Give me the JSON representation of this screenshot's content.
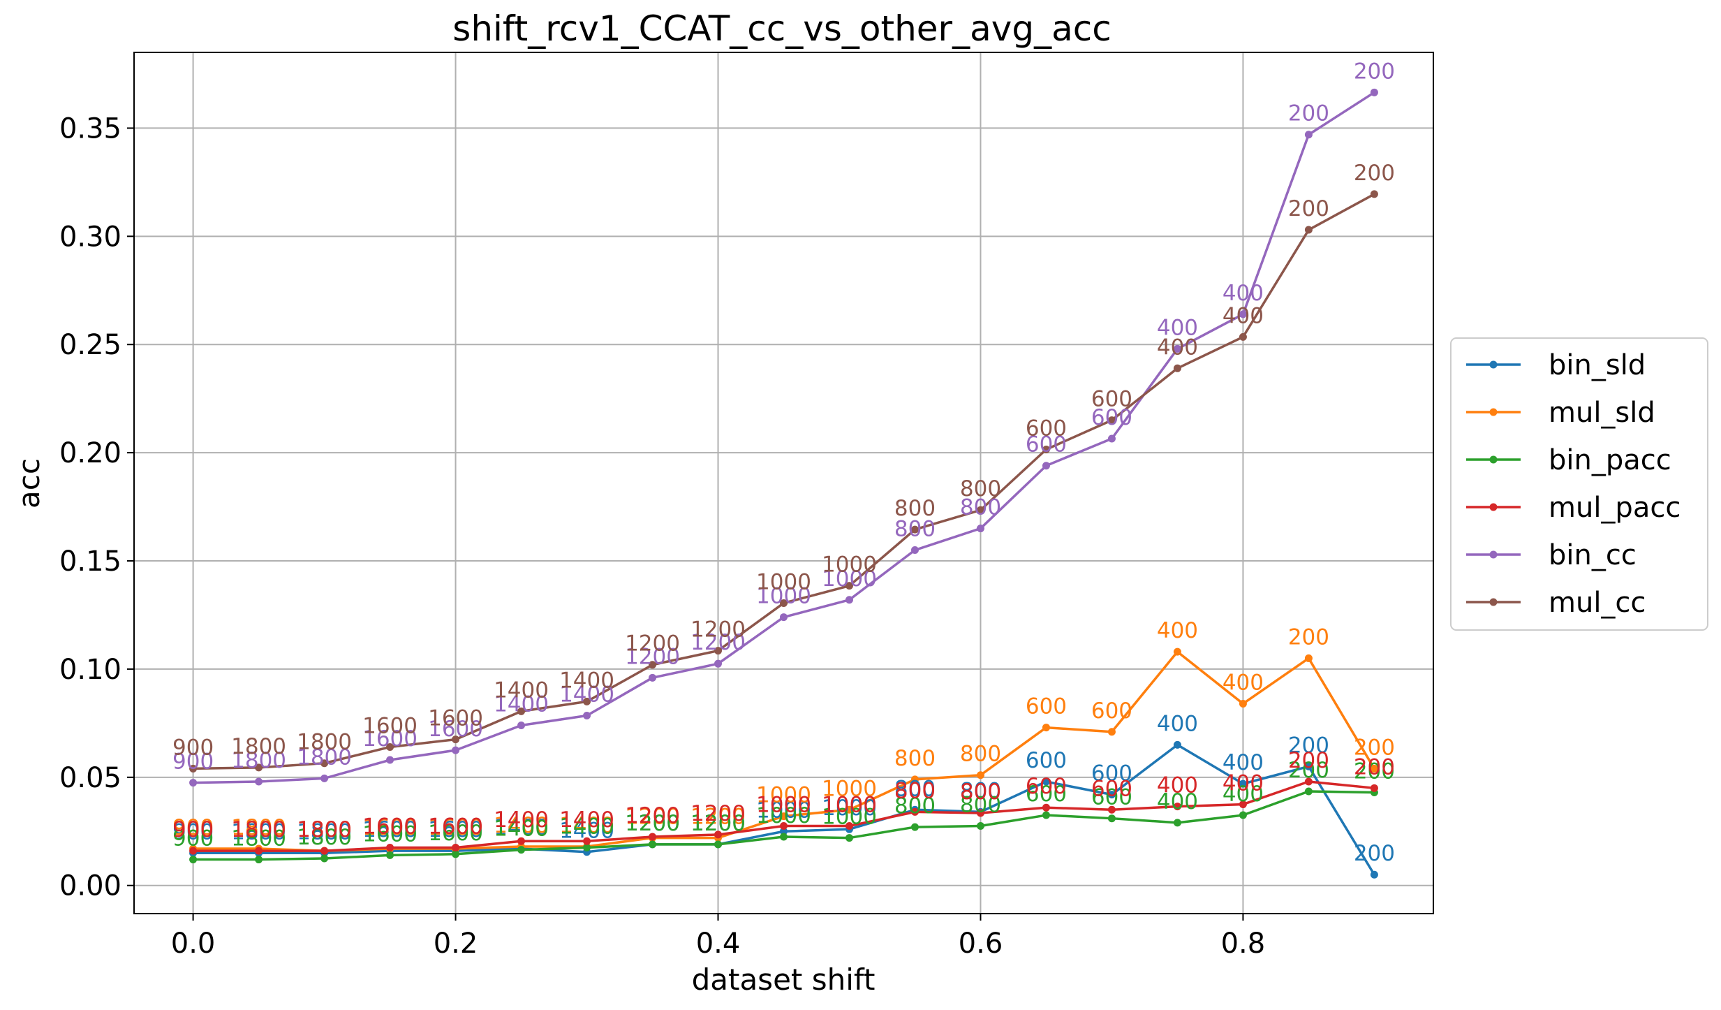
{
  "chart_data": {
    "type": "line",
    "title": "shift_rcv1_CCAT_cc_vs_other_avg_acc",
    "xlabel": "dataset shift",
    "ylabel": "acc",
    "xlim": [
      -0.045,
      0.945
    ],
    "ylim": [
      -0.013,
      0.385
    ],
    "x": [
      0.0,
      0.05,
      0.1,
      0.15,
      0.2,
      0.25,
      0.3,
      0.35,
      0.4,
      0.45,
      0.5,
      0.55,
      0.6,
      0.65,
      0.7,
      0.75,
      0.8,
      0.85,
      0.9
    ],
    "x_ticks": [
      0.0,
      0.2,
      0.4,
      0.6,
      0.8
    ],
    "x_tick_labels": [
      "0.0",
      "0.2",
      "0.4",
      "0.6",
      "0.8"
    ],
    "y_ticks": [
      0.0,
      0.05,
      0.1,
      0.15,
      0.2,
      0.25,
      0.3,
      0.35
    ],
    "y_tick_labels": [
      "0.00",
      "0.05",
      "0.10",
      "0.15",
      "0.20",
      "0.25",
      "0.30",
      "0.35"
    ],
    "grid": true,
    "legend_position": "center-right, outside plot",
    "point_labels": [
      "900",
      "1800",
      "1800",
      "1600",
      "1600",
      "1400",
      "1400",
      "1200",
      "1200",
      "1000",
      "1000",
      "800",
      "800",
      "600",
      "600",
      "400",
      "400",
      "200",
      "200"
    ],
    "series": [
      {
        "name": "bin_sld",
        "color": "#1f77b4",
        "values": [
          0.015,
          0.015,
          0.015,
          0.016,
          0.016,
          0.017,
          0.0155,
          0.019,
          0.019,
          0.025,
          0.026,
          0.035,
          0.034,
          0.048,
          0.042,
          0.065,
          0.047,
          0.055,
          0.005
        ]
      },
      {
        "name": "mul_sld",
        "color": "#ff7f0e",
        "values": [
          0.017,
          0.017,
          0.016,
          0.017,
          0.017,
          0.018,
          0.018,
          0.022,
          0.022,
          0.032,
          0.035,
          0.049,
          0.051,
          0.073,
          0.071,
          0.108,
          0.084,
          0.105,
          0.054
        ]
      },
      {
        "name": "bin_pacc",
        "color": "#2ca02c",
        "values": [
          0.012,
          0.012,
          0.0125,
          0.014,
          0.0145,
          0.0165,
          0.0175,
          0.019,
          0.019,
          0.0225,
          0.022,
          0.027,
          0.0275,
          0.0325,
          0.031,
          0.029,
          0.0325,
          0.0435,
          0.043
        ]
      },
      {
        "name": "mul_pacc",
        "color": "#d62728",
        "values": [
          0.016,
          0.016,
          0.016,
          0.0175,
          0.0175,
          0.0205,
          0.0205,
          0.0225,
          0.0235,
          0.0275,
          0.0275,
          0.034,
          0.0335,
          0.036,
          0.035,
          0.0365,
          0.0375,
          0.048,
          0.045
        ]
      },
      {
        "name": "bin_cc",
        "color": "#9467bd",
        "values": [
          0.0475,
          0.048,
          0.0495,
          0.058,
          0.0625,
          0.074,
          0.0785,
          0.096,
          0.1025,
          0.124,
          0.132,
          0.155,
          0.165,
          0.194,
          0.2065,
          0.248,
          0.264,
          0.347,
          0.3665
        ]
      },
      {
        "name": "mul_cc",
        "color": "#8c564b",
        "values": [
          0.054,
          0.0545,
          0.0565,
          0.064,
          0.0675,
          0.0805,
          0.085,
          0.102,
          0.1085,
          0.1305,
          0.1385,
          0.1645,
          0.1735,
          0.2015,
          0.215,
          0.239,
          0.2535,
          0.303,
          0.3195
        ]
      }
    ]
  }
}
